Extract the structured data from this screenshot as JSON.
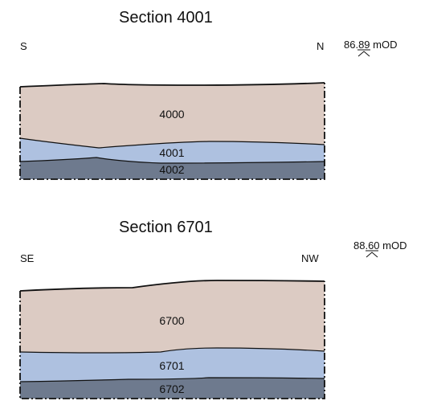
{
  "colors": {
    "upper_layer": "#dccbc3",
    "middle_layer": "#aec1e0",
    "lower_layer": "#6e7a8e",
    "line": "#111111"
  },
  "sections": [
    {
      "title": "Section 4001",
      "orientation_left": "S",
      "orientation_right": "N",
      "datum_value": "86.89",
      "datum_unit": " mOD",
      "layers": [
        "4000",
        "4001",
        "4002"
      ]
    },
    {
      "title": "Section 6701",
      "orientation_left": "SE",
      "orientation_right": "NW",
      "datum_value": "88.60",
      "datum_unit": " mOD",
      "layers": [
        "6700",
        "6701",
        "6702"
      ]
    }
  ]
}
